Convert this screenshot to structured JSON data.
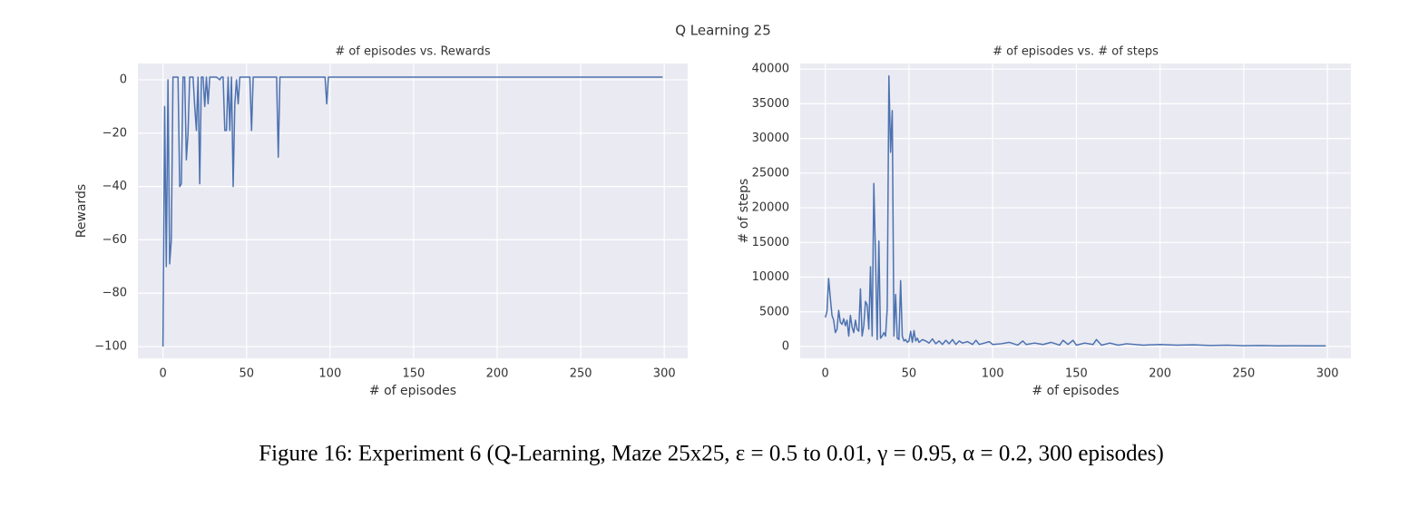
{
  "figure_title": "Q Learning 25",
  "caption": "Figure 16: Experiment 6 (Q-Learning, Maze 25x25, ε = 0.5 to 0.01, γ = 0.95, α = 0.2, 300 episodes)",
  "chart_data": [
    {
      "type": "line",
      "title": "# of episodes vs. Rewards",
      "x_label": "# of episodes",
      "y_label": "Rewards",
      "color": "#4c72b0",
      "grid": true,
      "xlim": [
        -15,
        314
      ],
      "ylim": [
        -104.4,
        6.1
      ],
      "xticks": [
        0,
        50,
        100,
        150,
        200,
        250,
        300
      ],
      "yticks": [
        {
          "value": -100,
          "label": "−100"
        },
        {
          "value": -80,
          "label": "−80"
        },
        {
          "value": -60,
          "label": "−60"
        },
        {
          "value": -40,
          "label": "−40"
        },
        {
          "value": -20,
          "label": "−20"
        },
        0
      ],
      "x": [
        0,
        1,
        2,
        3,
        4,
        5,
        6,
        7,
        8,
        9,
        10,
        11,
        12,
        13,
        14,
        15,
        16,
        17,
        18,
        19,
        20,
        21,
        22,
        23,
        24,
        25,
        26,
        27,
        28,
        30,
        32,
        34,
        35,
        36,
        37,
        38,
        39,
        40,
        41,
        42,
        43,
        44,
        45,
        46,
        48,
        52,
        53,
        54,
        60,
        68,
        69,
        70,
        80,
        97,
        98,
        99,
        150,
        200,
        250,
        299
      ],
      "values": [
        -100,
        -10,
        -70,
        0,
        -69,
        -60,
        1,
        1,
        1,
        1,
        -40,
        -39,
        1,
        1,
        -30,
        -20,
        1,
        1,
        1,
        -10,
        -19,
        1,
        -39,
        1,
        1,
        -10,
        1,
        -9,
        1,
        1,
        1,
        0,
        1,
        1,
        -19,
        -19,
        1,
        -19,
        1,
        -40,
        -9,
        0,
        -9,
        1,
        1,
        1,
        -19,
        1,
        1,
        1,
        -29,
        1,
        1,
        1,
        -9,
        1,
        1,
        1,
        1,
        1
      ]
    },
    {
      "type": "line",
      "title": "# of episodes vs. # of steps",
      "x_label": "# of episodes",
      "y_label": "# of steps",
      "color": "#4c72b0",
      "grid": true,
      "xlim": [
        -15,
        314
      ],
      "ylim": [
        -1700,
        40800
      ],
      "xticks": [
        0,
        50,
        100,
        150,
        200,
        250,
        300
      ],
      "yticks": [
        0,
        5000,
        10000,
        15000,
        20000,
        25000,
        30000,
        35000,
        40000
      ],
      "x": [
        0,
        1,
        2,
        3,
        4,
        5,
        6,
        7,
        8,
        9,
        10,
        11,
        12,
        13,
        14,
        15,
        16,
        17,
        18,
        19,
        20,
        21,
        22,
        23,
        24,
        25,
        26,
        27,
        28,
        29,
        30,
        31,
        32,
        33,
        34,
        35,
        36,
        37,
        38,
        39,
        40,
        41,
        42,
        43,
        44,
        45,
        46,
        47,
        48,
        49,
        50,
        51,
        52,
        53,
        54,
        55,
        56,
        58,
        60,
        62,
        64,
        66,
        68,
        70,
        72,
        74,
        76,
        78,
        80,
        82,
        85,
        88,
        90,
        92,
        95,
        98,
        100,
        105,
        110,
        115,
        118,
        120,
        125,
        130,
        135,
        140,
        142,
        145,
        148,
        150,
        155,
        160,
        162,
        165,
        170,
        175,
        180,
        190,
        200,
        210,
        220,
        230,
        240,
        250,
        260,
        270,
        280,
        290,
        299
      ],
      "values": [
        4200,
        5000,
        9800,
        7000,
        4500,
        3800,
        2000,
        2500,
        5200,
        3500,
        3200,
        4000,
        3000,
        3800,
        1500,
        4500,
        2800,
        2000,
        3800,
        2500,
        2200,
        8300,
        1500,
        3000,
        6500,
        6000,
        2500,
        11500,
        1500,
        23500,
        13000,
        1000,
        15200,
        1200,
        1500,
        2000,
        1500,
        5500,
        39000,
        28000,
        34000,
        1500,
        7500,
        1200,
        1000,
        9500,
        1500,
        800,
        1000,
        600,
        800,
        2200,
        600,
        2300,
        800,
        1200,
        600,
        1000,
        800,
        500,
        1100,
        400,
        800,
        300,
        900,
        400,
        1000,
        300,
        800,
        500,
        700,
        300,
        900,
        300,
        500,
        700,
        300,
        400,
        600,
        200,
        800,
        300,
        500,
        300,
        600,
        200,
        900,
        300,
        900,
        200,
        500,
        300,
        1000,
        200,
        500,
        200,
        400,
        200,
        300,
        200,
        250,
        150,
        200,
        120,
        150,
        100,
        120,
        100,
        100
      ]
    }
  ]
}
